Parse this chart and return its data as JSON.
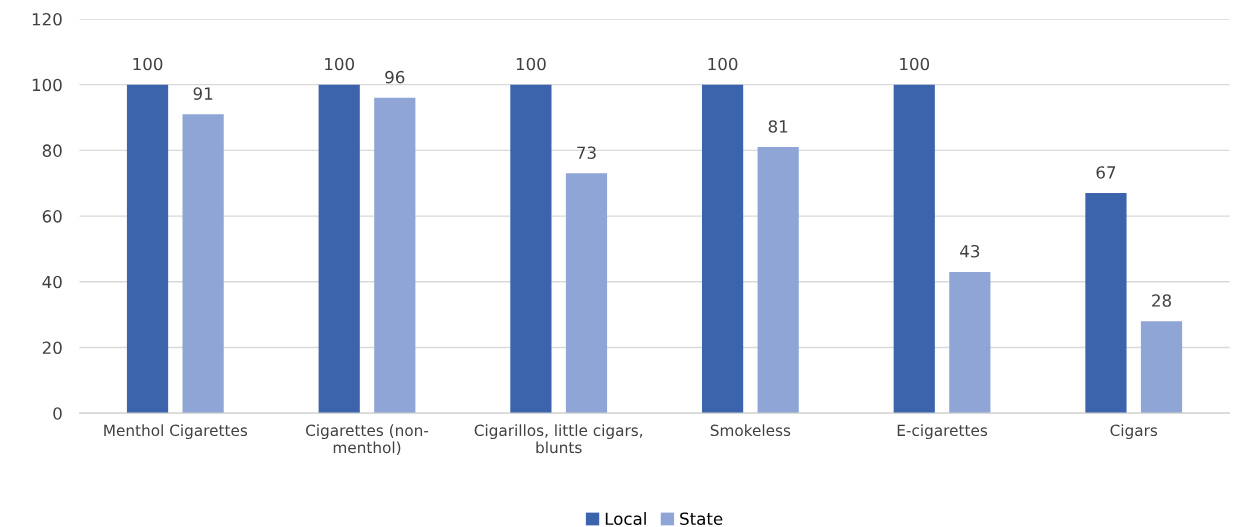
{
  "chart_data": {
    "type": "bar",
    "categories": [
      "Menthol Cigarettes",
      "Cigarettes (non-\nmenthol)",
      "Cigarillos, little cigars,\nblunts",
      "Smokeless",
      "E-cigarettes",
      "Cigars"
    ],
    "series": [
      {
        "name": "Local",
        "color": "#3b64ad",
        "values": [
          100,
          100,
          100,
          100,
          100,
          67
        ]
      },
      {
        "name": "State",
        "color": "#8fa5d6",
        "values": [
          91,
          96,
          73,
          81,
          43,
          28
        ]
      }
    ],
    "ylim": [
      0,
      120
    ],
    "yticks": [
      0,
      20,
      40,
      60,
      80,
      100,
      120
    ],
    "grid": "y",
    "legend": "bottom",
    "data_labels": true
  }
}
